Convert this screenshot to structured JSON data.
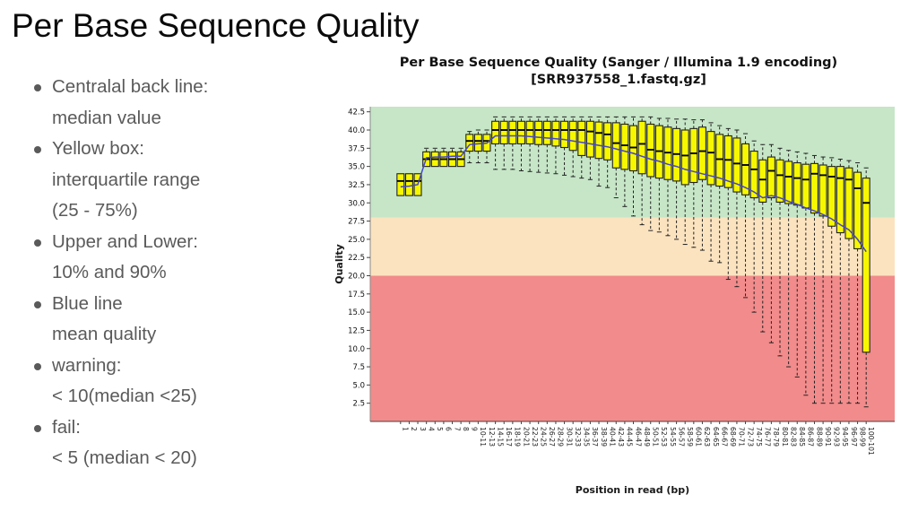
{
  "slide": {
    "title": "Per Base Sequence Quality",
    "bullets": [
      {
        "lines": [
          "Centralal back line:",
          "median value"
        ]
      },
      {
        "lines": [
          "Yellow box:",
          "interquartile range",
          "(25 - 75%)"
        ]
      },
      {
        "lines": [
          "Upper and Lower:",
          "10% and 90%"
        ]
      },
      {
        "lines": [
          "Blue line",
          "mean quality"
        ]
      },
      {
        "lines": [
          "warning:",
          "< 10(median <25)"
        ]
      },
      {
        "lines": [
          "fail:",
          "< 5 (median < 20)"
        ]
      }
    ]
  },
  "chart_data": {
    "type": "boxplot",
    "title_line1": "Per Base Sequence Quality (Sanger / Illumina 1.9 encoding)",
    "title_line2": "[SRR937558_1.fastq.gz]",
    "xlabel": "Position in read (bp)",
    "ylabel": "Quality",
    "ylim": [
      0,
      43.2
    ],
    "y_ticks": [
      2.5,
      5.0,
      7.5,
      10.0,
      12.5,
      15.0,
      17.5,
      20.0,
      22.5,
      25.0,
      27.5,
      30.0,
      32.5,
      35.0,
      37.5,
      40.0,
      42.5
    ],
    "bands": [
      {
        "from": 28,
        "to": 43.2,
        "color": "#c6e6c7",
        "meaning": "pass"
      },
      {
        "from": 20,
        "to": 28,
        "color": "#fbe3bf",
        "meaning": "warn"
      },
      {
        "from": 0,
        "to": 20,
        "color": "#f28b8b",
        "meaning": "fail"
      }
    ],
    "box_color": "#f7f700",
    "box_stroke": "#222222",
    "median_color": "#000000",
    "mean_line_color": "#4545cf",
    "whisker_color": "#222222",
    "box_fields": [
      "p10",
      "p25",
      "median",
      "p75",
      "p90"
    ],
    "categories": [
      "1",
      "2",
      "3",
      "4",
      "5",
      "6",
      "7",
      "8",
      "9",
      "10-11",
      "12-13",
      "14-15",
      "16-17",
      "18-19",
      "20-21",
      "22-23",
      "24-25",
      "26-27",
      "28-29",
      "30-31",
      "32-33",
      "34-35",
      "36-37",
      "38-39",
      "40-41",
      "42-43",
      "44-45",
      "46-47",
      "48-49",
      "50-51",
      "52-53",
      "54-55",
      "56-57",
      "58-59",
      "60-61",
      "62-63",
      "64-65",
      "66-67",
      "68-69",
      "70-71",
      "72-73",
      "74-75",
      "76-77",
      "78-79",
      "80-81",
      "82-83",
      "84-85",
      "86-87",
      "88-89",
      "90-91",
      "92-93",
      "94-95",
      "96-97",
      "98-99",
      "100-101"
    ],
    "boxes": [
      [
        31,
        31,
        33,
        34,
        34
      ],
      [
        31,
        31,
        33,
        34,
        34
      ],
      [
        31,
        31,
        33,
        34,
        34
      ],
      [
        35,
        35,
        36,
        37,
        37.5
      ],
      [
        35,
        35,
        36,
        37,
        37.5
      ],
      [
        35,
        35,
        36,
        37,
        37.5
      ],
      [
        35,
        35,
        36,
        37,
        37.5
      ],
      [
        35,
        35,
        36,
        37,
        37.5
      ],
      [
        35.5,
        37.1,
        38.5,
        39.4,
        39.8
      ],
      [
        35.5,
        37.1,
        38.5,
        39.4,
        40
      ],
      [
        35.5,
        37.1,
        38.5,
        39.4,
        40
      ],
      [
        34.6,
        38.1,
        40,
        41.2,
        41.8
      ],
      [
        34.6,
        38.1,
        40,
        41.2,
        41.8
      ],
      [
        34.6,
        38.1,
        40,
        41.2,
        41.8
      ],
      [
        34.4,
        38.1,
        40,
        41.2,
        41.8
      ],
      [
        34.3,
        38.1,
        40,
        41.2,
        41.8
      ],
      [
        34.2,
        38,
        40,
        41.2,
        41.8
      ],
      [
        34.1,
        38,
        40,
        41.2,
        41.8
      ],
      [
        34,
        37.8,
        40,
        41.2,
        41.8
      ],
      [
        33.8,
        37.6,
        40,
        41.2,
        41.8
      ],
      [
        33.6,
        37.2,
        40,
        41.2,
        41.8
      ],
      [
        33.4,
        36.5,
        40,
        41.2,
        41.8
      ],
      [
        33.2,
        36.3,
        39.8,
        41.2,
        41.8
      ],
      [
        32.3,
        36.1,
        39.6,
        41.1,
        41.8
      ],
      [
        32.1,
        35.9,
        39.4,
        41,
        41.8
      ],
      [
        30.7,
        34.8,
        38.2,
        41,
        41.8
      ],
      [
        29.5,
        34.6,
        37.9,
        40.8,
        41.8
      ],
      [
        28.2,
        34.4,
        37.6,
        40.6,
        41.8
      ],
      [
        27,
        34,
        38.1,
        41.2,
        41.8
      ],
      [
        26.2,
        33.6,
        37.3,
        40.8,
        41.8
      ],
      [
        26,
        33.4,
        37.1,
        40.6,
        41.6
      ],
      [
        25.5,
        33.2,
        36.9,
        40.4,
        41.6
      ],
      [
        25,
        33,
        36.7,
        40.2,
        41.5
      ],
      [
        24.3,
        32.5,
        36.5,
        40,
        41.5
      ],
      [
        23.9,
        32.8,
        36.8,
        40.2,
        41.4
      ],
      [
        23.5,
        33.2,
        37.1,
        40.4,
        41.4
      ],
      [
        22,
        32.5,
        36.9,
        39.8,
        41
      ],
      [
        21.8,
        32.3,
        36,
        39.4,
        40.6
      ],
      [
        19.5,
        32.1,
        35.9,
        39.2,
        40.2
      ],
      [
        18.5,
        31.5,
        35.4,
        38.9,
        40
      ],
      [
        17,
        31.1,
        35.2,
        38.1,
        39.5
      ],
      [
        15,
        30.7,
        34.6,
        37.1,
        38.5
      ],
      [
        12.3,
        30.1,
        33.2,
        35.9,
        38
      ],
      [
        10.8,
        30.7,
        34.4,
        36.3,
        38
      ],
      [
        9,
        30.1,
        33.8,
        35.9,
        37.5
      ],
      [
        7.5,
        29.9,
        33.6,
        35.7,
        37.2
      ],
      [
        6.1,
        29.7,
        33.4,
        35.5,
        37
      ],
      [
        3.6,
        29.3,
        33.2,
        35.3,
        36.8
      ],
      [
        2.5,
        28.6,
        34,
        35.4,
        36.5
      ],
      [
        2.5,
        28.2,
        33.8,
        35.2,
        36.3
      ],
      [
        2.5,
        26.8,
        33.6,
        35,
        36.2
      ],
      [
        2.5,
        25.9,
        33.4,
        35,
        36
      ],
      [
        2.5,
        25.1,
        33.2,
        34.8,
        35.8
      ],
      [
        2.5,
        23.7,
        32,
        34.2,
        35.5
      ],
      [
        2,
        9.5,
        30,
        33.4,
        34.8
      ]
    ],
    "mean": [
      32.2,
      32.3,
      32.5,
      36.2,
      36.3,
      36.3,
      36.4,
      36.4,
      38.0,
      38.1,
      38.2,
      39.2,
      39.2,
      39.2,
      39.2,
      39.1,
      39.0,
      38.9,
      38.8,
      38.7,
      38.5,
      38.3,
      38.1,
      37.9,
      37.7,
      37.4,
      37.1,
      36.8,
      36.4,
      36.0,
      35.7,
      35.3,
      35.0,
      34.6,
      34.3,
      34.0,
      33.7,
      33.4,
      33.0,
      32.6,
      32.1,
      31.5,
      30.7,
      31.0,
      30.7,
      30.2,
      29.8,
      29.3,
      28.9,
      28.4,
      27.8,
      27.0,
      26.3,
      25.0,
      23.3
    ]
  }
}
